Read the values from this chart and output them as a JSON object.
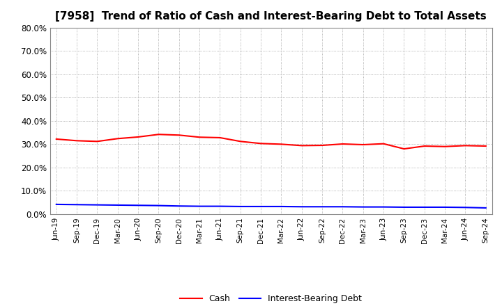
{
  "title": "[7958]  Trend of Ratio of Cash and Interest-Bearing Debt to Total Assets",
  "x_labels": [
    "Jun-19",
    "Sep-19",
    "Dec-19",
    "Mar-20",
    "Jun-20",
    "Sep-20",
    "Dec-20",
    "Mar-21",
    "Jun-21",
    "Sep-21",
    "Dec-21",
    "Mar-22",
    "Jun-22",
    "Sep-22",
    "Dec-22",
    "Mar-23",
    "Jun-23",
    "Sep-23",
    "Dec-23",
    "Mar-24",
    "Jun-24",
    "Sep-24"
  ],
  "cash": [
    32.2,
    31.5,
    31.2,
    32.4,
    33.1,
    34.2,
    33.9,
    33.0,
    32.8,
    31.2,
    30.3,
    30.0,
    29.4,
    29.5,
    30.1,
    29.8,
    30.2,
    28.0,
    29.2,
    29.0,
    29.4,
    29.2
  ],
  "interest_bearing_debt": [
    4.2,
    4.1,
    4.0,
    3.9,
    3.8,
    3.7,
    3.5,
    3.4,
    3.4,
    3.3,
    3.3,
    3.3,
    3.2,
    3.2,
    3.2,
    3.1,
    3.1,
    3.0,
    3.0,
    3.0,
    2.9,
    2.7
  ],
  "cash_color": "#FF0000",
  "debt_color": "#0000FF",
  "ylim": [
    0,
    80
  ],
  "yticks": [
    0,
    10,
    20,
    30,
    40,
    50,
    60,
    70,
    80
  ],
  "background_color": "#FFFFFF",
  "grid_color": "#999999",
  "title_fontsize": 11,
  "legend_cash": "Cash",
  "legend_debt": "Interest-Bearing Debt"
}
